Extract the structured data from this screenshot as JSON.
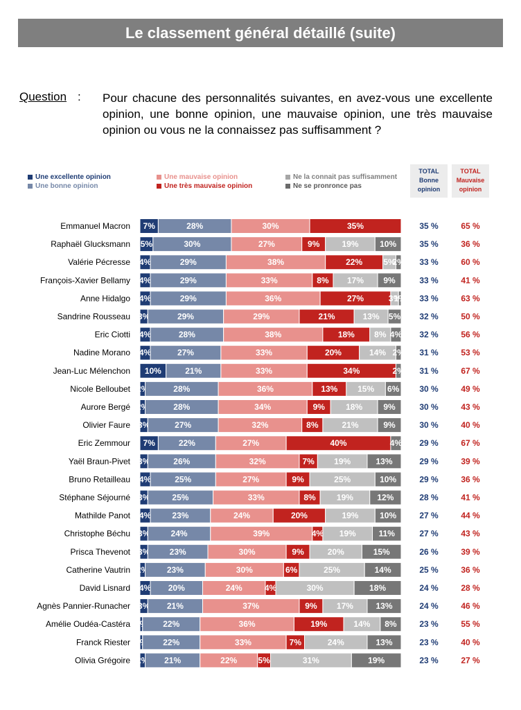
{
  "header": {
    "title": "Le classement général détaillé (suite)"
  },
  "question": {
    "label": "Question",
    "colon": ":",
    "text": "Pour chacune des personnalités suivantes, en avez-vous une excellente opinion, une bonne opinion, une mauvaise opinion, une très mauvaise opinion ou vous ne la connaissez pas suffisamment ?"
  },
  "legend": [
    {
      "label": "Une excellente opinion",
      "color": "#1f3c74"
    },
    {
      "label": "Une bonne opinion",
      "color": "#7688a8"
    },
    {
      "label": "Une mauvaise opinion",
      "color": "#e8918d"
    },
    {
      "label": "Une très mauvaise opinion",
      "color": "#c1231f"
    },
    {
      "label": "Ne la connait pas suffisamment",
      "color": "#a6a6a6"
    },
    {
      "label": "Ne se pronronce pas",
      "color": "#6b6b6b"
    }
  ],
  "totals_header": {
    "good": [
      "TOTAL",
      "Bonne",
      "opinion"
    ],
    "bad": [
      "TOTAL",
      "Mauvaise",
      "opinion"
    ]
  },
  "colors": {
    "excellent": "#1f3c74",
    "bonne": "#7688a8",
    "mauvaise": "#e8918d",
    "tres_mauvaise": "#c1231f",
    "ne_connait_pas": "#c0c0c0",
    "ne_se_prononce_pas": "#777777",
    "total_good_text": "#1f3c74",
    "total_bad_text": "#c1231f"
  },
  "chart_data": {
    "type": "bar",
    "orientation": "horizontal-stacked",
    "series": [
      {
        "name": "Une excellente opinion",
        "key": "excellent"
      },
      {
        "name": "Une bonne opinion",
        "key": "bonne"
      },
      {
        "name": "Une mauvaise opinion",
        "key": "mauvaise"
      },
      {
        "name": "Une très mauvaise opinion",
        "key": "tres_mauvaise"
      },
      {
        "name": "Ne la connait pas suffisamment",
        "key": "ne_connait_pas"
      },
      {
        "name": "Ne se pronronce pas",
        "key": "ne_se_prononce_pas"
      }
    ],
    "rows": [
      {
        "name": "Emmanuel Macron",
        "values": [
          7,
          28,
          30,
          35,
          0,
          0
        ],
        "labels": [
          "7%",
          "28%",
          "30%",
          "35%",
          "",
          ""
        ],
        "total_good": "35 %",
        "total_bad": "65 %"
      },
      {
        "name": "Raphaël Glucksmann",
        "values": [
          5,
          30,
          27,
          9,
          19,
          10
        ],
        "labels": [
          "5%",
          "30%",
          "27%",
          "9%",
          "19%",
          "10%"
        ],
        "total_good": "35 %",
        "total_bad": "36 %"
      },
      {
        "name": "Valérie Pécresse",
        "values": [
          4,
          29,
          38,
          22,
          5,
          2
        ],
        "labels": [
          "4%",
          "29%",
          "38%",
          "22%",
          "5%",
          "2%"
        ],
        "total_good": "33 %",
        "total_bad": "60 %"
      },
      {
        "name": "François-Xavier Bellamy",
        "values": [
          4,
          29,
          33,
          8,
          17,
          9
        ],
        "labels": [
          "4%",
          "29%",
          "33%",
          "8%",
          "17%",
          "9%"
        ],
        "total_good": "33 %",
        "total_bad": "41 %"
      },
      {
        "name": "Anne Hidalgo",
        "values": [
          4,
          29,
          36,
          27,
          3,
          1
        ],
        "labels": [
          "4%",
          "29%",
          "36%",
          "27%",
          "3%",
          "1%"
        ],
        "total_good": "33 %",
        "total_bad": "63 %"
      },
      {
        "name": "Sandrine Rousseau",
        "values": [
          3,
          29,
          29,
          21,
          13,
          5
        ],
        "labels": [
          "3%",
          "29%",
          "29%",
          "21%",
          "13%",
          "5%"
        ],
        "total_good": "32 %",
        "total_bad": "50 %"
      },
      {
        "name": "Eric Ciotti",
        "values": [
          4,
          28,
          38,
          18,
          8,
          4
        ],
        "labels": [
          "4%",
          "28%",
          "38%",
          "18%",
          "8%",
          "4%"
        ],
        "total_good": "32 %",
        "total_bad": "56 %"
      },
      {
        "name": "Nadine Morano",
        "values": [
          4,
          27,
          33,
          20,
          14,
          2
        ],
        "labels": [
          "4%",
          "27%",
          "33%",
          "20%",
          "14%",
          "2%"
        ],
        "total_good": "31 %",
        "total_bad": "53 %"
      },
      {
        "name": "Jean-Luc Mélenchon",
        "values": [
          10,
          21,
          33,
          34,
          0,
          2
        ],
        "labels": [
          "10%",
          "21%",
          "33%",
          "34%",
          "",
          "2%"
        ],
        "total_good": "31 %",
        "total_bad": "67 %"
      },
      {
        "name": "Nicole Belloubet",
        "values": [
          2,
          28,
          36,
          13,
          15,
          6
        ],
        "labels": [
          "2%",
          "28%",
          "36%",
          "13%",
          "15%",
          "6%"
        ],
        "total_good": "30 %",
        "total_bad": "49 %"
      },
      {
        "name": "Aurore Bergé",
        "values": [
          2,
          28,
          34,
          9,
          18,
          9
        ],
        "labels": [
          "2%",
          "28%",
          "34%",
          "9%",
          "18%",
          "9%"
        ],
        "total_good": "30 %",
        "total_bad": "43 %"
      },
      {
        "name": "Olivier Faure",
        "values": [
          3,
          27,
          32,
          8,
          21,
          9
        ],
        "labels": [
          "3%",
          "27%",
          "32%",
          "8%",
          "21%",
          "9%"
        ],
        "total_good": "30 %",
        "total_bad": "40 %"
      },
      {
        "name": "Eric Zemmour",
        "values": [
          7,
          22,
          27,
          40,
          0,
          4
        ],
        "labels": [
          "7%",
          "22%",
          "27%",
          "40%",
          "",
          "4%"
        ],
        "total_good": "29 %",
        "total_bad": "67 %"
      },
      {
        "name": "Yaël Braun-Pivet",
        "values": [
          3,
          26,
          32,
          7,
          19,
          13
        ],
        "labels": [
          "3%",
          "26%",
          "32%",
          "7%",
          "19%",
          "13%"
        ],
        "total_good": "29 %",
        "total_bad": "39 %"
      },
      {
        "name": "Bruno Retailleau",
        "values": [
          4,
          25,
          27,
          9,
          25,
          10
        ],
        "labels": [
          "4%",
          "25%",
          "27%",
          "9%",
          "25%",
          "10%"
        ],
        "total_good": "29 %",
        "total_bad": "36 %"
      },
      {
        "name": "Stéphane Séjourné",
        "values": [
          3,
          25,
          33,
          8,
          19,
          12
        ],
        "labels": [
          "3%",
          "25%",
          "33%",
          "8%",
          "19%",
          "12%"
        ],
        "total_good": "28 %",
        "total_bad": "41 %"
      },
      {
        "name": "Mathilde Panot",
        "values": [
          4,
          23,
          24,
          20,
          19,
          10
        ],
        "labels": [
          "4%",
          "23%",
          "24%",
          "20%",
          "19%",
          "10%"
        ],
        "total_good": "27 %",
        "total_bad": "44 %"
      },
      {
        "name": "Christophe Béchu",
        "values": [
          3,
          24,
          39,
          4,
          19,
          11
        ],
        "labels": [
          "3%",
          "24%",
          "39%",
          "4%",
          "19%",
          "11%"
        ],
        "total_good": "27 %",
        "total_bad": "43 %"
      },
      {
        "name": "Prisca Thevenot",
        "values": [
          3,
          23,
          30,
          9,
          20,
          15
        ],
        "labels": [
          "3%",
          "23%",
          "30%",
          "9%",
          "20%",
          "15%"
        ],
        "total_good": "26 %",
        "total_bad": "39 %"
      },
      {
        "name": "Catherine Vautrin",
        "values": [
          2,
          23,
          30,
          6,
          25,
          14
        ],
        "labels": [
          "2%",
          "23%",
          "30%",
          "6%",
          "25%",
          "14%"
        ],
        "total_good": "25 %",
        "total_bad": "36 %"
      },
      {
        "name": "David Lisnard",
        "values": [
          4,
          20,
          24,
          4,
          30,
          18
        ],
        "labels": [
          "4%",
          "20%",
          "24%",
          "4%",
          "30%",
          "18%"
        ],
        "total_good": "24 %",
        "total_bad": "28 %"
      },
      {
        "name": "Agnès Pannier-Runacher",
        "values": [
          3,
          21,
          37,
          9,
          17,
          13
        ],
        "labels": [
          "3%",
          "21%",
          "37%",
          "9%",
          "17%",
          "13%"
        ],
        "total_good": "24 %",
        "total_bad": "46 %"
      },
      {
        "name": "Amélie Oudéa-Castéra",
        "values": [
          1,
          22,
          36,
          19,
          14,
          8
        ],
        "labels": [
          "1%",
          "22%",
          "36%",
          "19%",
          "14%",
          "8%"
        ],
        "total_good": "23 %",
        "total_bad": "55 %"
      },
      {
        "name": "Franck Riester",
        "values": [
          1,
          22,
          33,
          7,
          24,
          13
        ],
        "labels": [
          "1%",
          "22%",
          "33%",
          "7%",
          "24%",
          "13%"
        ],
        "total_good": "23 %",
        "total_bad": "40 %"
      },
      {
        "name": "Olivia Grégoire",
        "values": [
          2,
          21,
          22,
          5,
          31,
          19
        ],
        "labels": [
          "2%",
          "21%",
          "22%",
          "5%",
          "31%",
          "19%"
        ],
        "total_good": "23 %",
        "total_bad": "27 %"
      }
    ]
  }
}
